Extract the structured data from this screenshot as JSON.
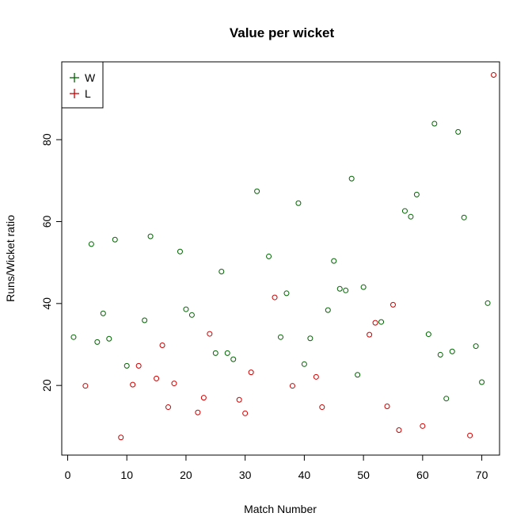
{
  "chart_data": {
    "type": "scatter",
    "title": "Value per wicket",
    "xlabel": "Match Number",
    "ylabel": "Runs/Wicket ratio",
    "xlim": [
      -1,
      73
    ],
    "ylim": [
      3,
      99
    ],
    "xticks": [
      0,
      10,
      20,
      30,
      40,
      50,
      60,
      70
    ],
    "yticks": [
      20,
      40,
      60,
      80
    ],
    "grid": false,
    "legend_position": "top-left",
    "series": [
      {
        "name": "W",
        "color": "#006400",
        "marker": "circle",
        "points": [
          [
            1,
            31.8
          ],
          [
            4,
            54.5
          ],
          [
            5,
            30.6
          ],
          [
            6,
            37.6
          ],
          [
            7,
            31.4
          ],
          [
            8,
            55.6
          ],
          [
            10,
            24.8
          ],
          [
            13,
            35.9
          ],
          [
            14,
            56.4
          ],
          [
            19,
            52.7
          ],
          [
            20,
            38.6
          ],
          [
            21,
            37.2
          ],
          [
            25,
            27.9
          ],
          [
            26,
            47.8
          ],
          [
            27,
            27.9
          ],
          [
            28,
            26.4
          ],
          [
            32,
            67.4
          ],
          [
            34,
            51.5
          ],
          [
            36,
            31.8
          ],
          [
            37,
            42.5
          ],
          [
            39,
            64.5
          ],
          [
            40,
            25.2
          ],
          [
            41,
            31.5
          ],
          [
            44,
            38.4
          ],
          [
            45,
            50.4
          ],
          [
            46,
            43.6
          ],
          [
            47,
            43.2
          ],
          [
            48,
            70.5
          ],
          [
            49,
            22.6
          ],
          [
            50,
            44.0
          ],
          [
            53,
            35.5
          ],
          [
            57,
            62.6
          ],
          [
            58,
            61.2
          ],
          [
            59,
            66.6
          ],
          [
            61,
            32.5
          ],
          [
            62,
            83.9
          ],
          [
            63,
            27.5
          ],
          [
            64,
            16.8
          ],
          [
            65,
            28.3
          ],
          [
            66,
            81.9
          ],
          [
            67,
            61.0
          ],
          [
            69,
            29.6
          ],
          [
            70,
            20.8
          ],
          [
            71,
            40.1
          ]
        ]
      },
      {
        "name": "L",
        "color": "#cc0000",
        "marker": "circle",
        "points": [
          [
            3,
            19.9
          ],
          [
            9,
            7.3
          ],
          [
            11,
            20.2
          ],
          [
            12,
            24.8
          ],
          [
            15,
            21.7
          ],
          [
            16,
            29.8
          ],
          [
            17,
            14.7
          ],
          [
            18,
            20.5
          ],
          [
            22,
            13.4
          ],
          [
            23,
            17.0
          ],
          [
            24,
            32.6
          ],
          [
            29,
            16.5
          ],
          [
            30,
            13.2
          ],
          [
            31,
            23.2
          ],
          [
            35,
            41.5
          ],
          [
            38,
            19.9
          ],
          [
            42,
            22.1
          ],
          [
            43,
            14.7
          ],
          [
            51,
            32.4
          ],
          [
            52,
            35.3
          ],
          [
            54,
            14.9
          ],
          [
            55,
            39.7
          ],
          [
            56,
            9.1
          ],
          [
            60,
            10.1
          ],
          [
            68,
            7.8
          ],
          [
            72,
            95.8
          ]
        ]
      }
    ]
  }
}
